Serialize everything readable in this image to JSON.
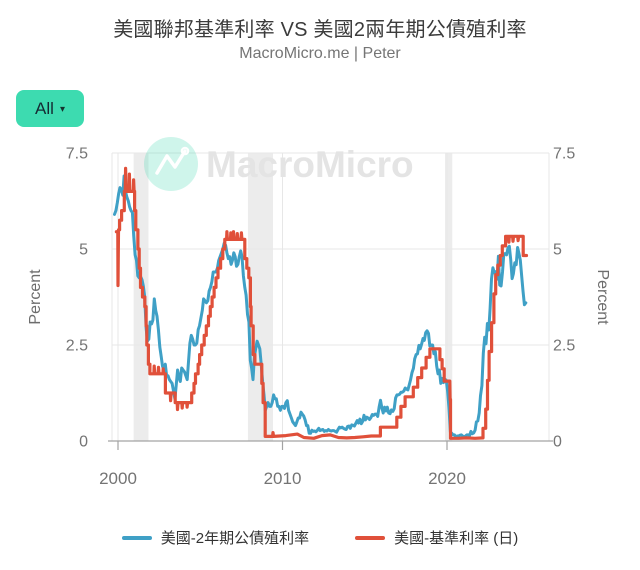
{
  "header": {
    "title": "美國聯邦基準利率 VS 美國2兩年期公債殖利率",
    "subtitle": "MacroMicro.me | Peter"
  },
  "controls": {
    "range_selector": {
      "label": "All",
      "caret": "▾"
    }
  },
  "watermark": {
    "text": "MacroMicro"
  },
  "legend": {
    "items": [
      {
        "label": "美國-2年期公債殖利率"
      },
      {
        "label": "美國-基準利率 (日)"
      }
    ]
  },
  "chart_data": {
    "type": "line",
    "title": "美國聯邦基準利率 VS 美國2兩年期公債殖利率",
    "xlabel": "",
    "ylabel_left": "Percent",
    "ylabel_right": "Percent",
    "xlim": [
      1999.6,
      2026.2
    ],
    "ylim": [
      0,
      7.5
    ],
    "x_ticks": [
      2000,
      2010,
      2020
    ],
    "y_ticks": [
      0,
      2.5,
      5,
      7.5
    ],
    "grid": true,
    "legend_position": "bottom",
    "colors": {
      "band": "#ececec",
      "grid": "#e7e7e7",
      "axis": "#a3a3a3",
      "tick_text": "#747474"
    },
    "recession_bands": [
      [
        2000.95,
        2001.85
      ],
      [
        2007.9,
        2009.42
      ],
      [
        2019.88,
        2020.32
      ]
    ],
    "series": [
      {
        "name": "美國-2年期公債殖利率",
        "color": "#3FA0C6",
        "style": "line",
        "x0": 1999.79,
        "dx": 0.08333,
        "values": [
          5.9,
          6.0,
          6.2,
          6.45,
          6.6,
          6.55,
          6.4,
          6.9,
          6.5,
          6.35,
          6.25,
          6.1,
          6.0,
          5.95,
          5.35,
          4.85,
          4.7,
          4.3,
          4.25,
          4.28,
          4.2,
          4.04,
          3.76,
          2.95,
          2.6,
          2.65,
          3.1,
          3.05,
          3.15,
          3.7,
          3.4,
          3.25,
          2.9,
          2.45,
          2.2,
          1.95,
          1.85,
          2.0,
          1.7,
          1.7,
          1.6,
          1.55,
          1.5,
          1.3,
          1.1,
          1.45,
          1.85,
          1.65,
          1.55,
          1.9,
          1.85,
          1.8,
          1.7,
          1.6,
          2.1,
          2.55,
          2.75,
          2.65,
          2.5,
          2.5,
          2.55,
          2.9,
          3.0,
          3.2,
          3.4,
          3.7,
          3.65,
          3.6,
          3.65,
          3.9,
          4.0,
          4.15,
          4.4,
          4.4,
          4.4,
          4.5,
          4.7,
          4.8,
          4.9,
          5.0,
          5.15,
          5.1,
          4.9,
          4.75,
          4.8,
          4.6,
          4.7,
          4.9,
          4.8,
          4.55,
          4.6,
          4.8,
          4.95,
          4.8,
          4.3,
          4.0,
          3.8,
          3.3,
          3.1,
          2.1,
          1.9,
          1.6,
          2.2,
          2.4,
          2.6,
          2.5,
          2.4,
          2.0,
          1.55,
          1.2,
          0.8,
          0.9,
          1.0,
          0.9,
          0.9,
          1.0,
          1.2,
          1.1,
          1.1,
          0.9,
          0.9,
          0.8,
          0.9,
          0.9,
          0.85,
          1.0,
          1.05,
          0.8,
          0.7,
          0.6,
          0.5,
          0.45,
          0.4,
          0.5,
          0.6,
          0.6,
          0.75,
          0.7,
          0.65,
          0.55,
          0.4,
          0.4,
          0.2,
          0.2,
          0.28,
          0.25,
          0.26,
          0.24,
          0.28,
          0.33,
          0.27,
          0.29,
          0.3,
          0.25,
          0.27,
          0.26,
          0.3,
          0.27,
          0.26,
          0.27,
          0.27,
          0.25,
          0.23,
          0.3,
          0.36,
          0.34,
          0.36,
          0.33,
          0.31,
          0.3,
          0.38,
          0.39,
          0.33,
          0.42,
          0.41,
          0.39,
          0.46,
          0.53,
          0.47,
          0.57,
          0.45,
          0.51,
          0.67,
          0.55,
          0.62,
          0.6,
          0.56,
          0.61,
          0.69,
          0.67,
          0.7,
          0.7,
          0.64,
          0.88,
          1.06,
          0.87,
          0.73,
          0.88,
          0.78,
          0.88,
          0.73,
          0.71,
          0.81,
          0.77,
          0.84,
          1.12,
          1.2,
          1.2,
          1.22,
          1.27,
          1.27,
          1.3,
          1.38,
          1.35,
          1.33,
          1.47,
          1.6,
          1.78,
          1.89,
          2.14,
          2.25,
          2.27,
          2.49,
          2.4,
          2.52,
          2.67,
          2.62,
          2.82,
          2.87,
          2.8,
          2.48,
          2.5,
          2.5,
          2.27,
          2.33,
          1.95,
          1.75,
          1.85,
          1.5,
          1.63,
          1.52,
          1.61,
          1.58,
          1.3,
          0.86,
          0.23,
          0.2,
          0.16,
          0.16,
          0.11,
          0.13,
          0.13,
          0.15,
          0.16,
          0.13,
          0.11,
          0.13,
          0.16,
          0.16,
          0.14,
          0.25,
          0.19,
          0.21,
          0.28,
          0.5,
          0.52,
          0.73,
          1.18,
          1.44,
          2.28,
          2.7,
          2.53,
          3.06,
          2.89,
          3.45,
          4.22,
          4.51,
          4.38,
          4.41,
          4.21,
          4.81,
          4.06,
          4.04,
          4.4,
          4.87,
          4.88,
          4.85,
          5.03,
          5.07,
          4.73,
          4.23,
          4.36,
          4.64,
          4.59,
          5.04,
          4.89,
          4.71,
          4.29,
          3.91,
          3.55,
          3.6
        ]
      },
      {
        "name": "美國-基準利率 (日)",
        "color": "#E0503A",
        "style": "step",
        "points": [
          [
            1999.9,
            5.45
          ],
          [
            1999.99,
            5.45
          ],
          [
            2000.0,
            4.05
          ],
          [
            2000.03,
            5.5
          ],
          [
            2000.1,
            5.5
          ],
          [
            2000.1,
            5.75
          ],
          [
            2000.22,
            5.75
          ],
          [
            2000.22,
            6.0
          ],
          [
            2000.38,
            6.0
          ],
          [
            2000.38,
            6.5
          ],
          [
            2000.44,
            6.5
          ],
          [
            2000.46,
            7.1
          ],
          [
            2000.49,
            6.5
          ],
          [
            2000.67,
            6.5
          ],
          [
            2000.69,
            6.95
          ],
          [
            2000.72,
            6.5
          ],
          [
            2000.93,
            6.5
          ],
          [
            2000.95,
            6.8
          ],
          [
            2000.98,
            6.5
          ],
          [
            2001.01,
            6.5
          ],
          [
            2001.01,
            6.0
          ],
          [
            2001.08,
            6.0
          ],
          [
            2001.08,
            5.5
          ],
          [
            2001.21,
            5.5
          ],
          [
            2001.21,
            5.0
          ],
          [
            2001.29,
            5.0
          ],
          [
            2001.29,
            4.5
          ],
          [
            2001.37,
            4.5
          ],
          [
            2001.37,
            4.0
          ],
          [
            2001.49,
            4.0
          ],
          [
            2001.49,
            3.75
          ],
          [
            2001.63,
            3.75
          ],
          [
            2001.63,
            3.5
          ],
          [
            2001.71,
            3.5
          ],
          [
            2001.71,
            3.0
          ],
          [
            2001.75,
            3.0
          ],
          [
            2001.75,
            2.5
          ],
          [
            2001.85,
            2.5
          ],
          [
            2001.85,
            2.0
          ],
          [
            2001.94,
            2.0
          ],
          [
            2001.94,
            1.75
          ],
          [
            2002.18,
            1.75
          ],
          [
            2002.2,
            1.95
          ],
          [
            2002.23,
            1.75
          ],
          [
            2002.44,
            1.75
          ],
          [
            2002.46,
            1.92
          ],
          [
            2002.49,
            1.75
          ],
          [
            2002.73,
            1.75
          ],
          [
            2002.75,
            1.88
          ],
          [
            2002.77,
            1.75
          ],
          [
            2002.88,
            1.75
          ],
          [
            2002.88,
            1.25
          ],
          [
            2003.18,
            1.25
          ],
          [
            2003.2,
            1.05
          ],
          [
            2003.23,
            1.25
          ],
          [
            2003.48,
            1.25
          ],
          [
            2003.48,
            1.0
          ],
          [
            2003.6,
            1.0
          ],
          [
            2003.62,
            0.82
          ],
          [
            2003.65,
            1.0
          ],
          [
            2003.88,
            1.0
          ],
          [
            2003.9,
            0.86
          ],
          [
            2003.93,
            1.0
          ],
          [
            2004.18,
            1.0
          ],
          [
            2004.2,
            0.88
          ],
          [
            2004.23,
            1.0
          ],
          [
            2004.48,
            1.0
          ],
          [
            2004.48,
            1.25
          ],
          [
            2004.62,
            1.25
          ],
          [
            2004.62,
            1.5
          ],
          [
            2004.71,
            1.5
          ],
          [
            2004.71,
            1.75
          ],
          [
            2004.87,
            1.75
          ],
          [
            2004.87,
            2.0
          ],
          [
            2004.96,
            2.0
          ],
          [
            2004.96,
            2.25
          ],
          [
            2005.09,
            2.25
          ],
          [
            2005.09,
            2.5
          ],
          [
            2005.24,
            2.5
          ],
          [
            2005.24,
            2.75
          ],
          [
            2005.37,
            2.75
          ],
          [
            2005.37,
            3.0
          ],
          [
            2005.5,
            3.0
          ],
          [
            2005.5,
            3.25
          ],
          [
            2005.61,
            3.25
          ],
          [
            2005.61,
            3.5
          ],
          [
            2005.72,
            3.5
          ],
          [
            2005.72,
            3.75
          ],
          [
            2005.84,
            3.75
          ],
          [
            2005.84,
            4.0
          ],
          [
            2005.96,
            4.0
          ],
          [
            2005.96,
            4.25
          ],
          [
            2006.08,
            4.25
          ],
          [
            2006.08,
            4.5
          ],
          [
            2006.24,
            4.5
          ],
          [
            2006.24,
            4.75
          ],
          [
            2006.37,
            4.75
          ],
          [
            2006.37,
            5.0
          ],
          [
            2006.49,
            5.0
          ],
          [
            2006.49,
            5.25
          ],
          [
            2006.6,
            5.25
          ],
          [
            2006.62,
            5.45
          ],
          [
            2006.65,
            5.25
          ],
          [
            2006.84,
            5.25
          ],
          [
            2006.86,
            5.42
          ],
          [
            2006.89,
            5.25
          ],
          [
            2007.0,
            5.25
          ],
          [
            2007.02,
            5.45
          ],
          [
            2007.05,
            5.25
          ],
          [
            2007.23,
            5.25
          ],
          [
            2007.25,
            5.4
          ],
          [
            2007.28,
            5.25
          ],
          [
            2007.48,
            5.25
          ],
          [
            2007.5,
            5.42
          ],
          [
            2007.53,
            5.25
          ],
          [
            2007.71,
            5.25
          ],
          [
            2007.71,
            4.75
          ],
          [
            2007.83,
            4.75
          ],
          [
            2007.83,
            4.5
          ],
          [
            2007.95,
            4.5
          ],
          [
            2007.95,
            4.25
          ],
          [
            2008.05,
            4.25
          ],
          [
            2008.05,
            3.5
          ],
          [
            2008.09,
            3.5
          ],
          [
            2008.09,
            3.0
          ],
          [
            2008.22,
            3.0
          ],
          [
            2008.22,
            2.25
          ],
          [
            2008.32,
            2.25
          ],
          [
            2008.32,
            2.0
          ],
          [
            2008.74,
            2.0
          ],
          [
            2008.74,
            1.5
          ],
          [
            2008.82,
            1.5
          ],
          [
            2008.82,
            1.0
          ],
          [
            2008.95,
            1.0
          ],
          [
            2008.95,
            0.12
          ],
          [
            2009.4,
            0.12
          ],
          [
            2009.42,
            0.22
          ],
          [
            2009.45,
            0.12
          ],
          [
            2010.2,
            0.14
          ],
          [
            2010.9,
            0.18
          ],
          [
            2011.3,
            0.09
          ],
          [
            2011.9,
            0.07
          ],
          [
            2012.4,
            0.14
          ],
          [
            2012.9,
            0.16
          ],
          [
            2013.4,
            0.09
          ],
          [
            2013.9,
            0.08
          ],
          [
            2014.4,
            0.09
          ],
          [
            2014.9,
            0.11
          ],
          [
            2015.4,
            0.13
          ],
          [
            2015.95,
            0.13
          ],
          [
            2015.95,
            0.36
          ],
          [
            2016.95,
            0.36
          ],
          [
            2016.95,
            0.62
          ],
          [
            2017.2,
            0.62
          ],
          [
            2017.2,
            0.9
          ],
          [
            2017.45,
            0.9
          ],
          [
            2017.45,
            1.15
          ],
          [
            2017.95,
            1.15
          ],
          [
            2017.95,
            1.4
          ],
          [
            2018.22,
            1.4
          ],
          [
            2018.22,
            1.65
          ],
          [
            2018.46,
            1.65
          ],
          [
            2018.46,
            1.9
          ],
          [
            2018.73,
            1.9
          ],
          [
            2018.73,
            2.18
          ],
          [
            2018.96,
            2.18
          ],
          [
            2018.96,
            2.4
          ],
          [
            2019.57,
            2.4
          ],
          [
            2019.57,
            2.12
          ],
          [
            2019.7,
            2.12
          ],
          [
            2019.7,
            1.88
          ],
          [
            2019.83,
            1.88
          ],
          [
            2019.83,
            1.56
          ],
          [
            2020.17,
            1.56
          ],
          [
            2020.19,
            1.08
          ],
          [
            2020.21,
            1.08
          ],
          [
            2020.21,
            0.07
          ],
          [
            2020.7,
            0.07
          ],
          [
            2021.2,
            0.08
          ],
          [
            2021.7,
            0.07
          ],
          [
            2022.19,
            0.08
          ],
          [
            2022.19,
            0.33
          ],
          [
            2022.35,
            0.33
          ],
          [
            2022.35,
            0.83
          ],
          [
            2022.46,
            0.83
          ],
          [
            2022.46,
            1.58
          ],
          [
            2022.56,
            1.58
          ],
          [
            2022.56,
            2.33
          ],
          [
            2022.71,
            2.33
          ],
          [
            2022.71,
            3.08
          ],
          [
            2022.85,
            3.08
          ],
          [
            2022.85,
            3.83
          ],
          [
            2022.96,
            3.83
          ],
          [
            2022.96,
            4.33
          ],
          [
            2023.09,
            4.33
          ],
          [
            2023.09,
            4.58
          ],
          [
            2023.24,
            4.58
          ],
          [
            2023.24,
            4.83
          ],
          [
            2023.36,
            4.83
          ],
          [
            2023.36,
            5.08
          ],
          [
            2023.56,
            5.08
          ],
          [
            2023.56,
            5.33
          ],
          [
            2023.74,
            5.33
          ],
          [
            2023.76,
            5.18
          ],
          [
            2023.79,
            5.33
          ],
          [
            2023.99,
            5.33
          ],
          [
            2024.01,
            5.2
          ],
          [
            2024.04,
            5.33
          ],
          [
            2024.3,
            5.33
          ],
          [
            2024.32,
            5.22
          ],
          [
            2024.35,
            5.33
          ],
          [
            2024.63,
            5.33
          ],
          [
            2024.63,
            4.83
          ],
          [
            2024.83,
            4.83
          ]
        ]
      }
    ]
  }
}
